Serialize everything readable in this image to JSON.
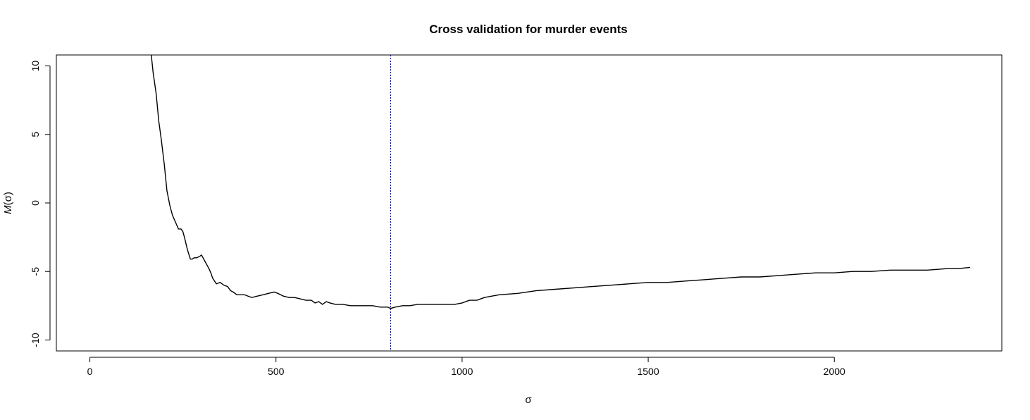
{
  "chart_data": {
    "type": "line",
    "title": "Cross validation for murder events",
    "xlabel": "σ",
    "ylabel_prefix": "M",
    "ylabel_suffix": "(σ)",
    "xlim": [
      -90,
      2450
    ],
    "ylim": [
      -10.8,
      10.8
    ],
    "x_ticks": [
      0,
      500,
      1000,
      1500,
      2000
    ],
    "x_tick_labels": [
      "0",
      "500",
      "1000",
      "1500",
      "2000"
    ],
    "y_ticks": [
      -10,
      -5,
      0,
      5,
      10
    ],
    "y_tick_labels": [
      "-10",
      "-5",
      "0",
      "5",
      "10"
    ],
    "grid": false,
    "vline": {
      "x": 808,
      "color": "#00008b",
      "style": "dotted"
    },
    "series": [
      {
        "color": "#000000",
        "x": [
          165,
          170,
          178,
          185,
          192,
          200,
          207,
          215,
          222,
          230,
          238,
          245,
          250,
          255,
          262,
          270,
          275,
          280,
          287,
          295,
          300,
          310,
          320,
          325,
          330,
          340,
          350,
          360,
          370,
          378,
          385,
          395,
          405,
          415,
          425,
          435,
          450,
          465,
          480,
          495,
          505,
          520,
          535,
          550,
          565,
          580,
          595,
          605,
          615,
          625,
          635,
          645,
          660,
          680,
          700,
          720,
          740,
          760,
          780,
          800,
          808,
          820,
          840,
          860,
          880,
          900,
          920,
          940,
          960,
          980,
          1000,
          1020,
          1040,
          1060,
          1080,
          1100,
          1150,
          1200,
          1250,
          1300,
          1350,
          1400,
          1450,
          1500,
          1550,
          1600,
          1650,
          1700,
          1750,
          1800,
          1850,
          1900,
          1950,
          2000,
          2050,
          2100,
          2150,
          2200,
          2250,
          2300,
          2330,
          2365
        ],
        "y": [
          10.8,
          9.5,
          8.0,
          6.0,
          4.6,
          2.8,
          0.9,
          -0.2,
          -0.9,
          -1.4,
          -1.9,
          -1.9,
          -2.1,
          -2.6,
          -3.4,
          -4.1,
          -4.1,
          -4.0,
          -4.0,
          -3.9,
          -3.8,
          -4.3,
          -4.8,
          -5.1,
          -5.5,
          -5.9,
          -5.8,
          -6.0,
          -6.1,
          -6.4,
          -6.5,
          -6.7,
          -6.7,
          -6.7,
          -6.8,
          -6.9,
          -6.8,
          -6.7,
          -6.6,
          -6.5,
          -6.6,
          -6.8,
          -6.9,
          -6.9,
          -7.0,
          -7.1,
          -7.1,
          -7.3,
          -7.2,
          -7.4,
          -7.2,
          -7.3,
          -7.4,
          -7.4,
          -7.5,
          -7.5,
          -7.5,
          -7.5,
          -7.6,
          -7.6,
          -7.7,
          -7.6,
          -7.5,
          -7.5,
          -7.4,
          -7.4,
          -7.4,
          -7.4,
          -7.4,
          -7.4,
          -7.3,
          -7.1,
          -7.1,
          -6.9,
          -6.8,
          -6.7,
          -6.6,
          -6.4,
          -6.3,
          -6.2,
          -6.1,
          -6.0,
          -5.9,
          -5.8,
          -5.8,
          -5.7,
          -5.6,
          -5.5,
          -5.4,
          -5.4,
          -5.3,
          -5.2,
          -5.1,
          -5.1,
          -5.0,
          -5.0,
          -4.9,
          -4.9,
          -4.9,
          -4.8,
          -4.8,
          -4.7
        ]
      }
    ]
  }
}
